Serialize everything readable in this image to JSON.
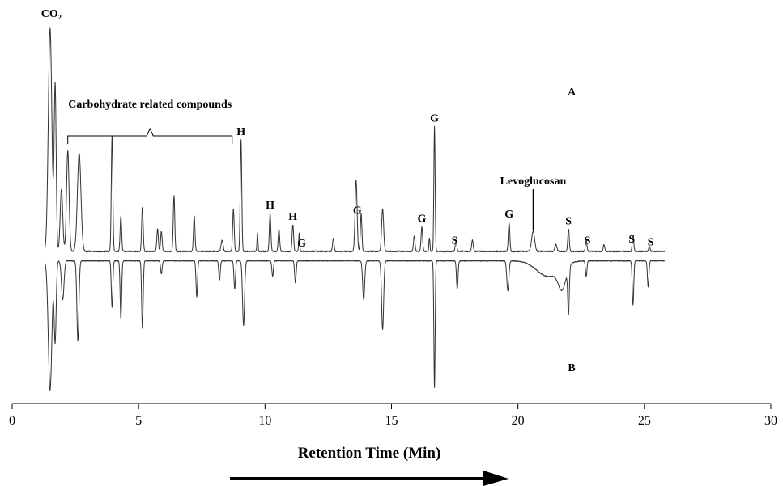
{
  "chart_data": {
    "type": "line",
    "xlabel": "Retention Time (Min)",
    "xlim": [
      0,
      30
    ],
    "x_ticks": [
      "0",
      "5",
      "10",
      "15",
      "20",
      "25",
      "30"
    ],
    "grid": false,
    "series": [
      {
        "name": "A",
        "direction": "up",
        "x_end": 25.8,
        "peaks": [
          {
            "x": 1.5,
            "h": 1.0,
            "w": 0.07
          },
          {
            "x": 1.7,
            "h": 0.74,
            "w": 0.04
          },
          {
            "x": 1.95,
            "h": 0.28,
            "w": 0.05
          },
          {
            "x": 2.2,
            "h": 0.45,
            "w": 0.05
          },
          {
            "x": 2.65,
            "h": 0.44,
            "w": 0.07
          },
          {
            "x": 3.95,
            "h": 0.52,
            "w": 0.03
          },
          {
            "x": 4.3,
            "h": 0.16,
            "w": 0.03
          },
          {
            "x": 5.15,
            "h": 0.2,
            "w": 0.03
          },
          {
            "x": 5.75,
            "h": 0.1,
            "w": 0.03
          },
          {
            "x": 5.9,
            "h": 0.09,
            "w": 0.03
          },
          {
            "x": 6.4,
            "h": 0.25,
            "w": 0.03
          },
          {
            "x": 7.2,
            "h": 0.16,
            "w": 0.03
          },
          {
            "x": 8.3,
            "h": 0.05,
            "w": 0.04
          },
          {
            "x": 8.75,
            "h": 0.19,
            "w": 0.03
          },
          {
            "x": 9.05,
            "h": 0.5,
            "w": 0.03
          },
          {
            "x": 9.7,
            "h": 0.08,
            "w": 0.02
          },
          {
            "x": 10.2,
            "h": 0.17,
            "w": 0.03
          },
          {
            "x": 10.55,
            "h": 0.1,
            "w": 0.03
          },
          {
            "x": 11.1,
            "h": 0.12,
            "w": 0.03
          },
          {
            "x": 11.35,
            "h": 0.08,
            "w": 0.02
          },
          {
            "x": 12.7,
            "h": 0.06,
            "w": 0.03
          },
          {
            "x": 13.6,
            "h": 0.32,
            "w": 0.04
          },
          {
            "x": 13.8,
            "h": 0.17,
            "w": 0.03
          },
          {
            "x": 14.65,
            "h": 0.19,
            "w": 0.04
          },
          {
            "x": 15.9,
            "h": 0.07,
            "w": 0.03
          },
          {
            "x": 16.2,
            "h": 0.11,
            "w": 0.03
          },
          {
            "x": 16.5,
            "h": 0.06,
            "w": 0.02
          },
          {
            "x": 16.7,
            "h": 0.56,
            "w": 0.025
          },
          {
            "x": 17.55,
            "h": 0.05,
            "w": 0.03
          },
          {
            "x": 18.2,
            "h": 0.05,
            "w": 0.03
          },
          {
            "x": 19.65,
            "h": 0.13,
            "w": 0.03
          },
          {
            "x": 20.6,
            "h": 0.09,
            "w": 0.06
          },
          {
            "x": 21.5,
            "h": 0.03,
            "w": 0.04
          },
          {
            "x": 22.0,
            "h": 0.1,
            "w": 0.03
          },
          {
            "x": 22.7,
            "h": 0.05,
            "w": 0.03
          },
          {
            "x": 23.4,
            "h": 0.03,
            "w": 0.03
          },
          {
            "x": 24.55,
            "h": 0.07,
            "w": 0.03
          },
          {
            "x": 25.2,
            "h": 0.02,
            "w": 0.03
          }
        ]
      },
      {
        "name": "B",
        "direction": "down",
        "x_end": 25.8,
        "peaks": [
          {
            "x": 1.5,
            "h": 1.0,
            "w": 0.07
          },
          {
            "x": 1.7,
            "h": 0.62,
            "w": 0.04
          },
          {
            "x": 2.0,
            "h": 0.3,
            "w": 0.05
          },
          {
            "x": 2.6,
            "h": 0.62,
            "w": 0.04
          },
          {
            "x": 3.95,
            "h": 0.36,
            "w": 0.03
          },
          {
            "x": 4.3,
            "h": 0.45,
            "w": 0.03
          },
          {
            "x": 5.15,
            "h": 0.52,
            "w": 0.03
          },
          {
            "x": 5.9,
            "h": 0.1,
            "w": 0.03
          },
          {
            "x": 7.3,
            "h": 0.28,
            "w": 0.03
          },
          {
            "x": 8.2,
            "h": 0.15,
            "w": 0.03
          },
          {
            "x": 8.8,
            "h": 0.22,
            "w": 0.03
          },
          {
            "x": 9.15,
            "h": 0.5,
            "w": 0.04
          },
          {
            "x": 10.3,
            "h": 0.12,
            "w": 0.03
          },
          {
            "x": 11.2,
            "h": 0.17,
            "w": 0.03
          },
          {
            "x": 13.9,
            "h": 0.3,
            "w": 0.04
          },
          {
            "x": 14.65,
            "h": 0.53,
            "w": 0.04
          },
          {
            "x": 16.7,
            "h": 0.98,
            "w": 0.025
          },
          {
            "x": 17.6,
            "h": 0.22,
            "w": 0.03
          },
          {
            "x": 19.6,
            "h": 0.23,
            "w": 0.04
          },
          {
            "x": 21.2,
            "h": 0.12,
            "w": 0.45
          },
          {
            "x": 21.75,
            "h": 0.17,
            "w": 0.15
          },
          {
            "x": 22.0,
            "h": 0.35,
            "w": 0.03
          },
          {
            "x": 22.7,
            "h": 0.12,
            "w": 0.03
          },
          {
            "x": 24.55,
            "h": 0.34,
            "w": 0.03
          },
          {
            "x": 25.15,
            "h": 0.2,
            "w": 0.03
          }
        ]
      }
    ],
    "annotations": [
      {
        "text": "CO₂",
        "x": 1.55
      },
      {
        "text": "Carbohydrate related compounds",
        "x_range": [
          2.2,
          8.7
        ]
      },
      {
        "text": "H",
        "x": 9.05
      },
      {
        "text": "H",
        "x": 10.2
      },
      {
        "text": "H",
        "x": 11.1
      },
      {
        "text": "G",
        "x": 11.45
      },
      {
        "text": "G",
        "x": 13.65
      },
      {
        "text": "G",
        "x": 16.2
      },
      {
        "text": "G",
        "x": 16.7
      },
      {
        "text": "S",
        "x": 17.5
      },
      {
        "text": "G",
        "x": 19.65
      },
      {
        "text": "Levoglucosan",
        "x": 20.6
      },
      {
        "text": "S",
        "x": 22.0
      },
      {
        "text": "S",
        "x": 22.75
      },
      {
        "text": "S",
        "x": 24.5
      },
      {
        "text": "S",
        "x": 25.25
      }
    ]
  }
}
